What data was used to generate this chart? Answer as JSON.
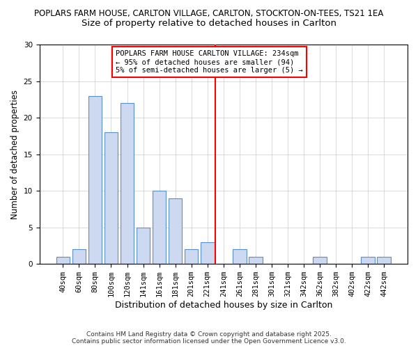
{
  "title1": "POPLARS FARM HOUSE, CARLTON VILLAGE, CARLTON, STOCKTON-ON-TEES, TS21 1EA",
  "title2": "Size of property relative to detached houses in Carlton",
  "xlabel": "Distribution of detached houses by size in Carlton",
  "ylabel": "Number of detached properties",
  "bar_labels": [
    "40sqm",
    "60sqm",
    "80sqm",
    "100sqm",
    "120sqm",
    "141sqm",
    "161sqm",
    "181sqm",
    "201sqm",
    "221sqm",
    "241sqm",
    "261sqm",
    "281sqm",
    "301sqm",
    "321sqm",
    "342sqm",
    "362sqm",
    "382sqm",
    "402sqm",
    "422sqm",
    "442sqm"
  ],
  "bar_values": [
    1,
    2,
    23,
    18,
    22,
    5,
    10,
    9,
    2,
    3,
    0,
    2,
    1,
    0,
    0,
    0,
    1,
    0,
    0,
    1,
    1
  ],
  "bar_color": "#ccd9f0",
  "bar_edge_color": "#5b8fc9",
  "grid_color": "#cccccc",
  "vline_color": "red",
  "annotation_text": "POPLARS FARM HOUSE CARLTON VILLAGE: 234sqm\n← 95% of detached houses are smaller (94)\n5% of semi-detached houses are larger (5) →",
  "annotation_box_color": "white",
  "annotation_box_edge": "red",
  "footer1": "Contains HM Land Registry data © Crown copyright and database right 2025.",
  "footer2": "Contains public sector information licensed under the Open Government Licence v3.0.",
  "ylim": [
    0,
    30
  ],
  "yticks": [
    0,
    5,
    10,
    15,
    20,
    25,
    30
  ],
  "background_color": "white",
  "title1_fontsize": 8.5,
  "title2_fontsize": 9.5,
  "xlabel_fontsize": 9,
  "ylabel_fontsize": 8.5,
  "tick_fontsize": 7.5,
  "footer_fontsize": 6.5,
  "annotation_fontsize": 7.5
}
